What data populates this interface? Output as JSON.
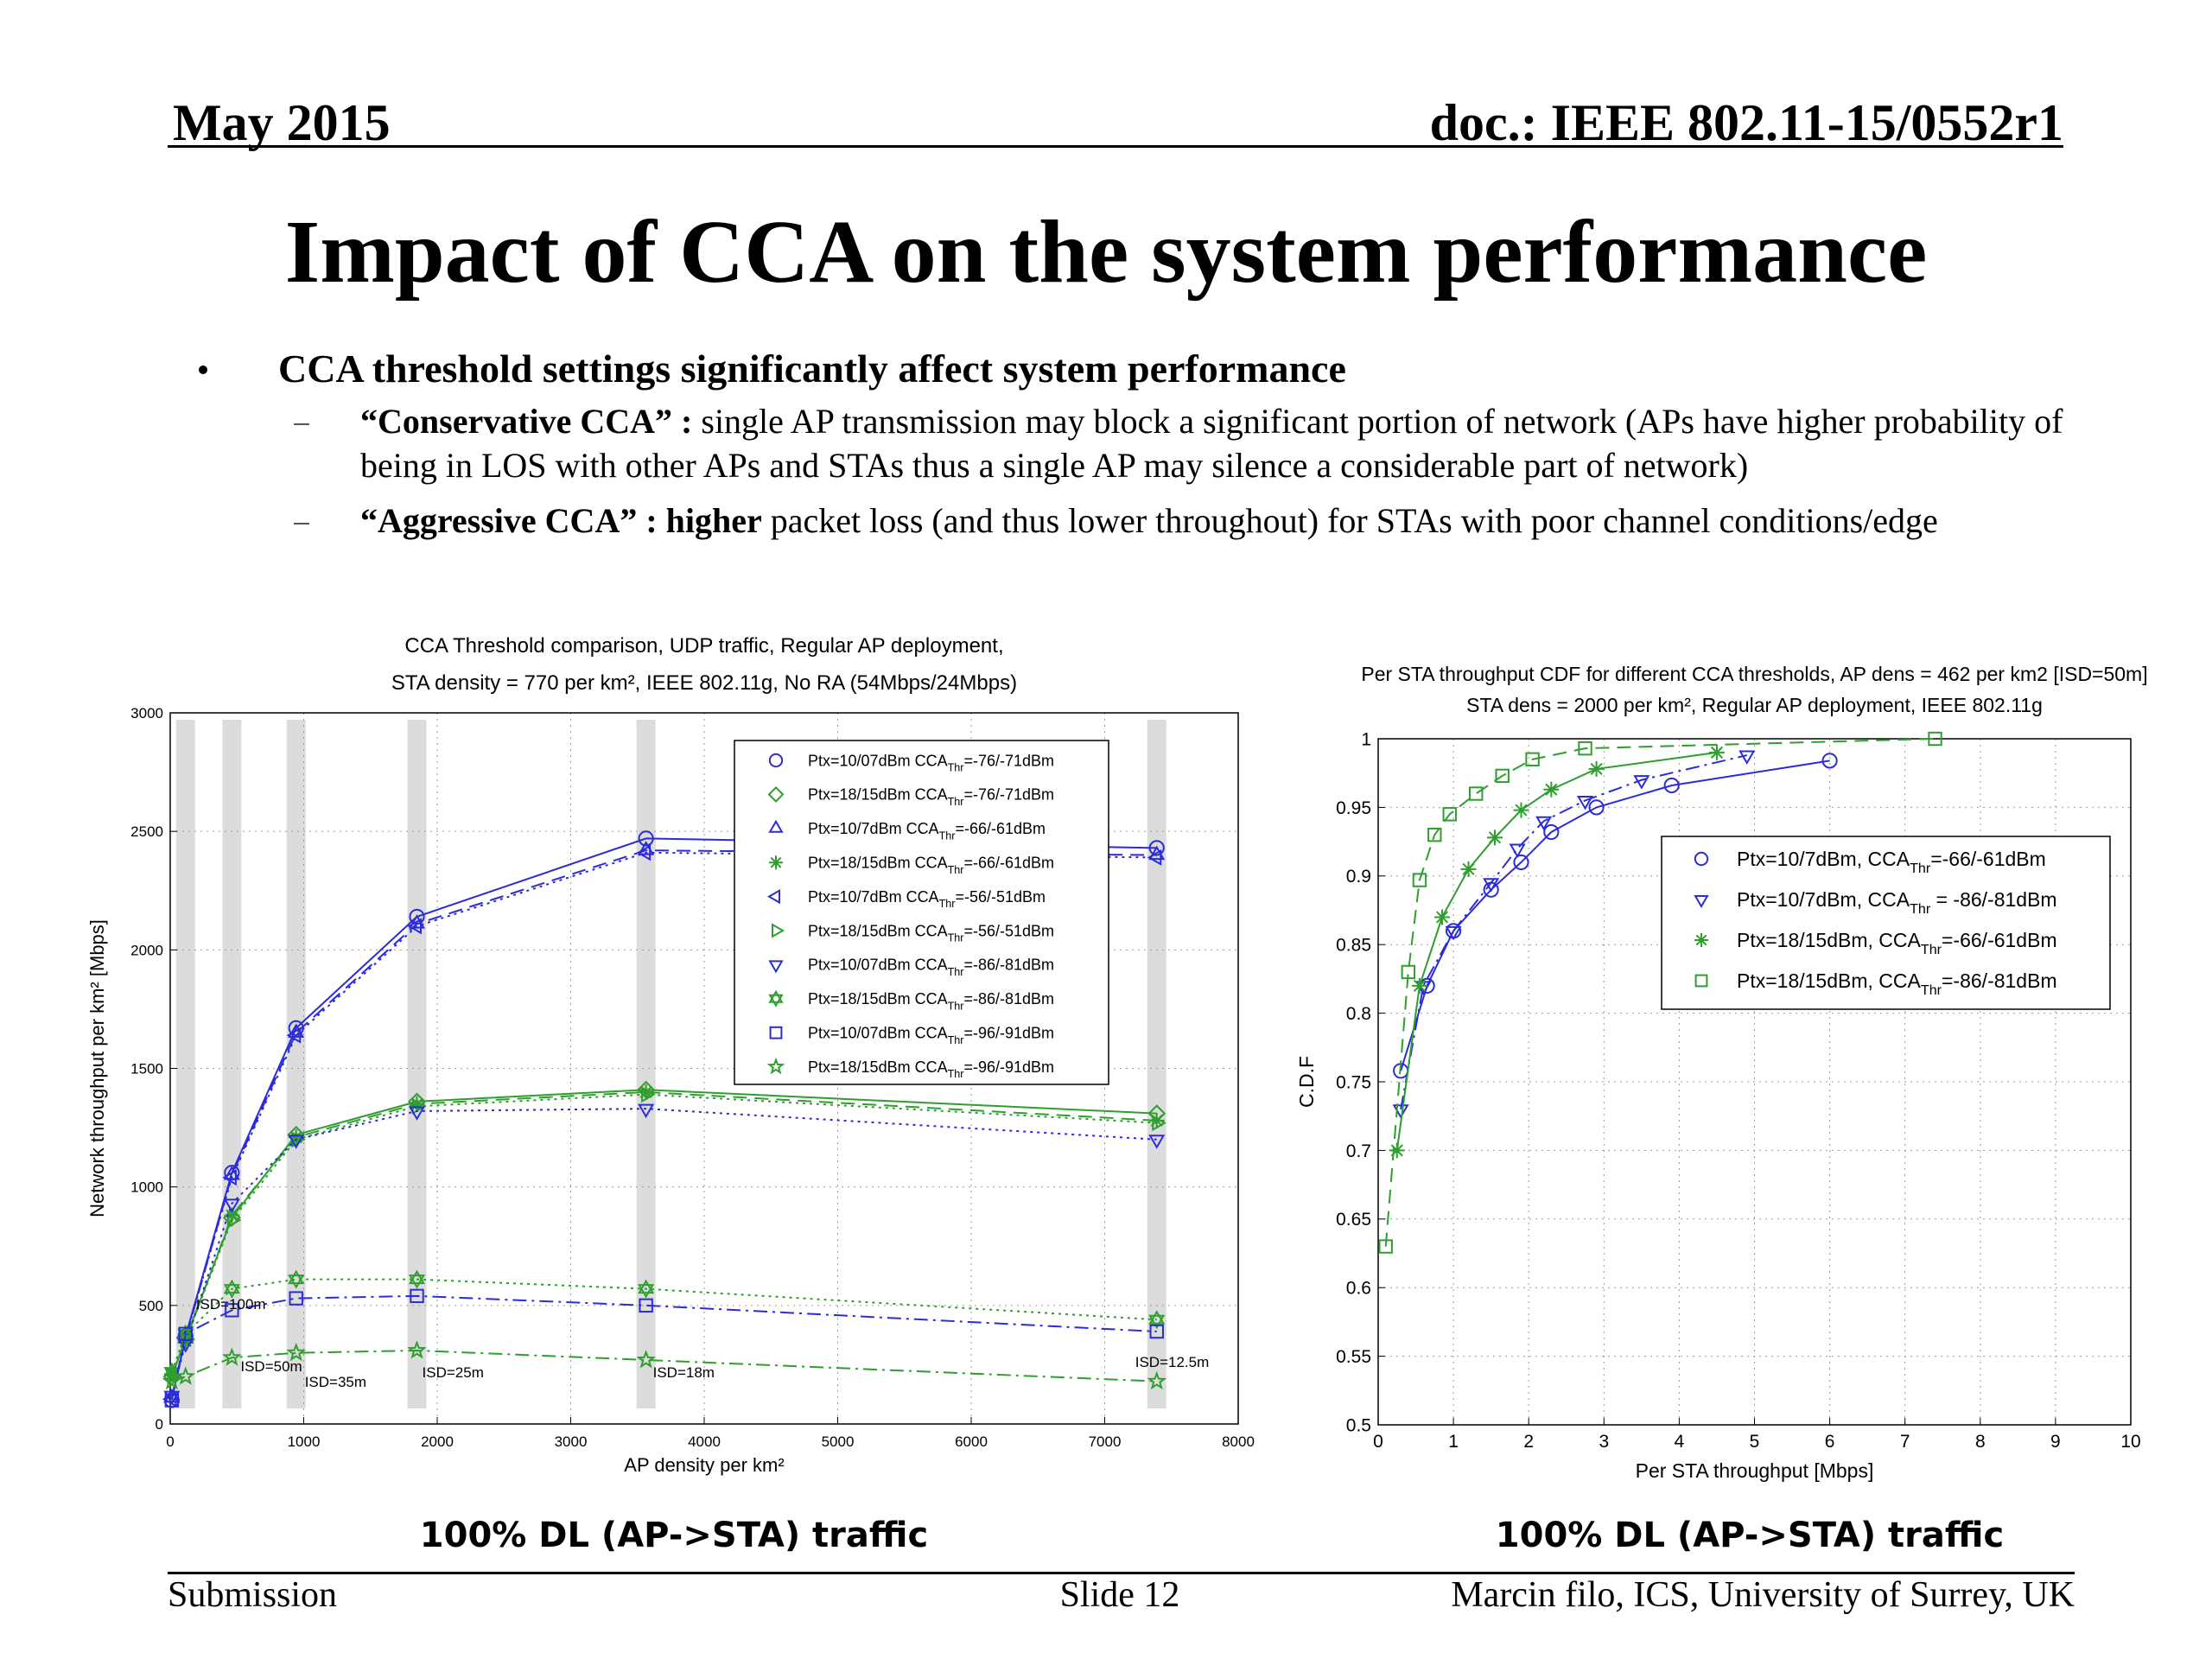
{
  "header": {
    "date": "May 2015",
    "doc": "doc.: IEEE 802.11-15/0552r1"
  },
  "title": "Impact of CCA on the system performance",
  "bullet": "CCA threshold settings significantly affect system performance",
  "sub_bullets": [
    {
      "lead": "“Conservative CCA” :",
      "text": "single AP transmission may block a significant portion of network (APs have higher probability of being in LOS with other APs and STAs thus a single AP may silence a considerable part of network)"
    },
    {
      "lead": "“Aggressive CCA” :",
      "emphasis": "higher",
      "text": "packet loss (and thus lower throughout) for STAs with poor channel conditions/edge"
    }
  ],
  "chart_data": [
    {
      "type": "line",
      "title": [
        "CCA Threshold comparison, UDP traffic, Regular AP deployment,",
        "STA density = 770 per km², IEEE 802.11g, No RA (54Mbps/24Mbps)"
      ],
      "x_label": "AP density per km²",
      "y_label": "Network throughput per km² [Mbps]",
      "x": [
        12,
        115,
        462,
        943,
        1848,
        3564,
        7390
      ],
      "xlim": [
        0,
        8000
      ],
      "xticks": [
        0,
        1000,
        2000,
        3000,
        4000,
        5000,
        6000,
        7000,
        8000
      ],
      "ylim": [
        0,
        3000
      ],
      "yticks": [
        0,
        500,
        1000,
        1500,
        2000,
        2500,
        3000
      ],
      "grid": true,
      "annotations": [
        "ISD=100m",
        "ISD=50m",
        "ISD=35m",
        "ISD=25m",
        "ISD=18m",
        "ISD=12.5m"
      ],
      "series": [
        {
          "name": [
            "Ptx=10/07dBm CCA",
            "Thr",
            "=-76/-71dBm"
          ],
          "color": "#2b2bd9",
          "marker": "circle",
          "dash": "solid",
          "values": [
            100,
            370,
            1060,
            1670,
            2140,
            2470,
            2430
          ]
        },
        {
          "name": [
            "Ptx=18/15dBm CCA",
            "Thr",
            "=-76/-71dBm"
          ],
          "color": "#2e9e2e",
          "marker": "diamond",
          "dash": "solid",
          "values": [
            200,
            360,
            870,
            1220,
            1360,
            1410,
            1310
          ]
        },
        {
          "name": [
            "Ptx=10/7dBm CCA",
            "Thr",
            "=-66/-61dBm"
          ],
          "color": "#2b2bd9",
          "marker": "triangle-up",
          "dash": "dashed",
          "values": [
            110,
            360,
            1050,
            1650,
            2110,
            2420,
            2400
          ]
        },
        {
          "name": [
            "Ptx=18/15dBm CCA",
            "Thr",
            "=-66/-61dBm"
          ],
          "color": "#2e9e2e",
          "marker": "asterisk",
          "dash": "dashed",
          "values": [
            210,
            350,
            880,
            1210,
            1350,
            1400,
            1280
          ]
        },
        {
          "name": [
            "Ptx=10/7dBm CCA",
            "Thr",
            "=-56/-51dBm"
          ],
          "color": "#2b2bd9",
          "marker": "triangle-left",
          "dash": "dotted",
          "values": [
            105,
            365,
            1040,
            1640,
            2100,
            2410,
            2390
          ]
        },
        {
          "name": [
            "Ptx=18/15dBm CCA",
            "Thr",
            "=-56/-51dBm"
          ],
          "color": "#2e9e2e",
          "marker": "triangle-right",
          "dash": "dotted",
          "values": [
            205,
            355,
            860,
            1200,
            1340,
            1390,
            1270
          ]
        },
        {
          "name": [
            "Ptx=10/07dBm CCA",
            "Thr",
            "=-86/-81dBm"
          ],
          "color": "#2b2bd9",
          "marker": "triangle-down",
          "dash": "dotted",
          "values": [
            120,
            340,
            930,
            1200,
            1320,
            1330,
            1200
          ]
        },
        {
          "name": [
            "Ptx=18/15dBm CCA",
            "Thr",
            "=-86/-81dBm"
          ],
          "color": "#2e9e2e",
          "marker": "hexagram",
          "dash": "dotted",
          "values": [
            220,
            380,
            570,
            610,
            610,
            570,
            440
          ]
        },
        {
          "name": [
            "Ptx=10/07dBm CCA",
            "Thr",
            "=-96/-91dBm"
          ],
          "color": "#2b2bd9",
          "marker": "square",
          "dash": "dashdot",
          "values": [
            100,
            380,
            480,
            530,
            540,
            500,
            390
          ]
        },
        {
          "name": [
            "Ptx=18/15dBm CCA",
            "Thr",
            "=-96/-91dBm"
          ],
          "color": "#2e9e2e",
          "marker": "star",
          "dash": "dashdot",
          "values": [
            180,
            200,
            280,
            300,
            310,
            270,
            180
          ]
        }
      ]
    },
    {
      "type": "line",
      "title": [
        "Per STA throughput CDF for different CCA thresholds, AP dens = 462 per km2 [ISD=50m]",
        "STA dens = 2000 per km², Regular AP deployment, IEEE 802.11g"
      ],
      "x_label": "Per STA throughput [Mbps]",
      "y_label": "C.D.F",
      "xlim": [
        0,
        10
      ],
      "xticks": [
        0,
        1,
        2,
        3,
        4,
        5,
        6,
        7,
        8,
        9,
        10
      ],
      "ylim": [
        0.5,
        1
      ],
      "yticks": [
        0.5,
        0.55,
        0.6,
        0.65,
        0.7,
        0.75,
        0.8,
        0.85,
        0.9,
        0.95,
        1
      ],
      "grid": true,
      "series": [
        {
          "name": [
            "Ptx=10/7dBm, CCA",
            "Thr",
            "=-66/-61dBm"
          ],
          "color": "#2b2bd9",
          "marker": "circle",
          "dash": "solid",
          "x": [
            0.3,
            0.65,
            1.0,
            1.5,
            1.9,
            2.3,
            2.9,
            3.9,
            6.0
          ],
          "values": [
            0.758,
            0.82,
            0.86,
            0.89,
            0.91,
            0.932,
            0.95,
            0.966,
            0.984
          ]
        },
        {
          "name": [
            "Ptx=10/7dBm, CCA",
            "Thr",
            " = -86/-81dBm"
          ],
          "color": "#2b2bd9",
          "marker": "triangle-down",
          "dash": "dashdot",
          "x": [
            0.3,
            0.6,
            1.0,
            1.5,
            1.85,
            2.2,
            2.75,
            3.5,
            4.9
          ],
          "values": [
            0.73,
            0.82,
            0.86,
            0.895,
            0.92,
            0.94,
            0.955,
            0.97,
            0.988
          ]
        },
        {
          "name": [
            "Ptx=18/15dBm, CCA",
            "Thr",
            "=-66/-61dBm"
          ],
          "color": "#2e9e2e",
          "marker": "asterisk",
          "dash": "solid",
          "x": [
            0.25,
            0.55,
            0.85,
            1.2,
            1.55,
            1.9,
            2.3,
            2.9,
            4.5
          ],
          "values": [
            0.7,
            0.82,
            0.87,
            0.905,
            0.928,
            0.948,
            0.963,
            0.978,
            0.99
          ]
        },
        {
          "name": [
            "Ptx=18/15dBm, CCA",
            "Thr",
            "=-86/-81dBm"
          ],
          "color": "#2e9e2e",
          "marker": "square",
          "dash": "dashed",
          "x": [
            0.1,
            0.4,
            0.55,
            0.75,
            0.95,
            1.3,
            1.65,
            2.05,
            2.75,
            7.4
          ],
          "values": [
            0.63,
            0.83,
            0.897,
            0.93,
            0.945,
            0.96,
            0.973,
            0.985,
            0.993,
            1.0
          ]
        }
      ]
    }
  ],
  "captions": [
    "100% DL (AP->STA) traffic",
    "100% DL (AP->STA) traffic"
  ],
  "footer": {
    "left": "Submission",
    "center": "Slide 12",
    "right": "Marcin filo, ICS, University of Surrey, UK"
  }
}
